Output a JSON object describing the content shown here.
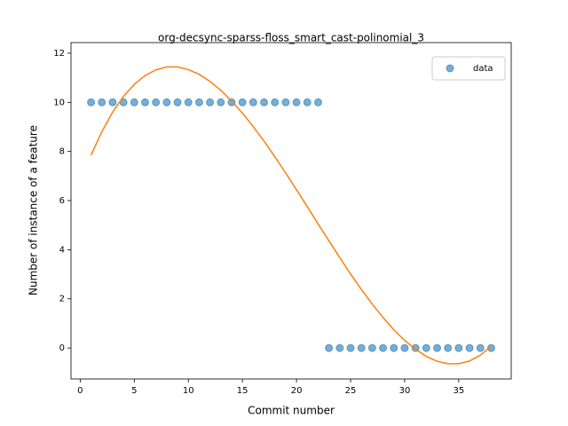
{
  "chart_data": {
    "type": "scatter",
    "title": "org-decsync-sparss-floss_smart_cast-polinomial_3",
    "x_label": "Commit number",
    "y_label": "Number of instance of a feature",
    "x": [
      1,
      2,
      3,
      4,
      5,
      6,
      7,
      8,
      9,
      10,
      11,
      12,
      13,
      14,
      15,
      16,
      17,
      18,
      19,
      20,
      21,
      22,
      23,
      24,
      25,
      26,
      27,
      28,
      29,
      30,
      31,
      32,
      33,
      34,
      35,
      36,
      37,
      38
    ],
    "series": [
      {
        "name": "data",
        "type": "scatter",
        "color": "#1f77b4",
        "values": [
          10,
          10,
          10,
          10,
          10,
          10,
          10,
          10,
          10,
          10,
          10,
          10,
          10,
          10,
          10,
          10,
          10,
          10,
          10,
          10,
          10,
          10,
          0,
          0,
          0,
          0,
          0,
          0,
          0,
          0,
          0,
          0,
          0,
          0,
          0,
          0,
          0,
          0
        ]
      },
      {
        "type": "line",
        "color": "#ff7f0e",
        "values": [
          7.85,
          8.8,
          9.6,
          10.24,
          10.73,
          11.09,
          11.32,
          11.44,
          11.44,
          11.33,
          11.14,
          10.85,
          10.49,
          10.05,
          9.56,
          9.01,
          8.42,
          7.78,
          7.12,
          6.44,
          5.75,
          5.05,
          4.36,
          3.68,
          3.01,
          2.38,
          1.79,
          1.24,
          0.74,
          0.31,
          -0.05,
          -0.34,
          -0.54,
          -0.64,
          -0.64,
          -0.53,
          -0.29,
          0.07
        ]
      }
    ],
    "xlim": [
      -0.85,
      39.85
    ],
    "ylim": [
      -1.26,
      12.43
    ],
    "xticks": [
      0,
      5,
      10,
      15,
      20,
      25,
      30,
      35
    ],
    "yticks": [
      0,
      2,
      4,
      6,
      8,
      10,
      12
    ],
    "legend": "upper right"
  }
}
